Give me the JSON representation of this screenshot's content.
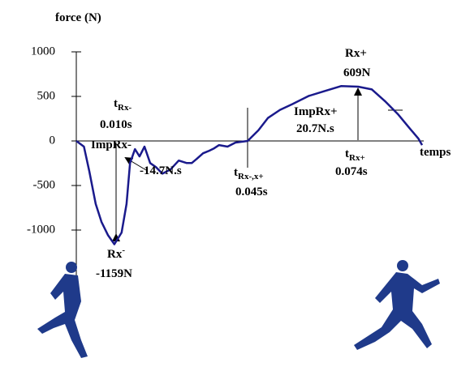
{
  "chart_data": {
    "type": "line",
    "y_label": "force (N)",
    "x_label": "temps",
    "x": [
      0,
      0.002,
      0.0034,
      0.0051,
      0.0066,
      0.0083,
      0.01,
      0.0119,
      0.0132,
      0.0141,
      0.0154,
      0.0166,
      0.0179,
      0.0194,
      0.0209,
      0.0226,
      0.0247,
      0.0269,
      0.029,
      0.0303,
      0.0316,
      0.0333,
      0.0349,
      0.0362,
      0.0375,
      0.0397,
      0.0418,
      0.045,
      0.0478,
      0.0503,
      0.0535,
      0.0567,
      0.061,
      0.0652,
      0.0695,
      0.074,
      0.0776,
      0.0812,
      0.0844,
      0.0876,
      0.0898,
      0.0908
    ],
    "series": [
      {
        "color": "#1a1a8c",
        "values": [
          0,
          -64,
          -339,
          -706,
          -908,
          -1055,
          -1159,
          -1028,
          -706,
          -248,
          -92,
          -174,
          -64,
          -248,
          -294,
          -367,
          -321,
          -220,
          -248,
          -248,
          -202,
          -138,
          -110,
          -83,
          -46,
          -64,
          -18,
          0,
          119,
          257,
          349,
          413,
          505,
          560,
          615,
          609,
          578,
          440,
          303,
          138,
          28,
          -46
        ]
      }
    ],
    "xlim": [
      0,
      0.0925
    ],
    "ylim": [
      -1000,
      1000
    ],
    "yticks": [
      1000,
      500,
      0,
      -500,
      -1000
    ],
    "grid": false,
    "annotations": [
      {
        "base": "t",
        "sub": "Rx-"
      },
      {
        "text": "0.010s"
      },
      {
        "text": "ImpRx-"
      },
      {
        "text": "-14.7N.s"
      },
      {
        "base": "Rx",
        "sup": "-"
      },
      {
        "text": "-1159N"
      },
      {
        "base": "t",
        "sub": "Rx-,x+"
      },
      {
        "text": "0.045s"
      },
      {
        "base": "t",
        "sub": "Rx+"
      },
      {
        "text": "0.074s"
      },
      {
        "text": "ImpRx+"
      },
      {
        "text": "20.7N.s"
      },
      {
        "text": "Rx+"
      },
      {
        "text": "609N"
      }
    ]
  }
}
